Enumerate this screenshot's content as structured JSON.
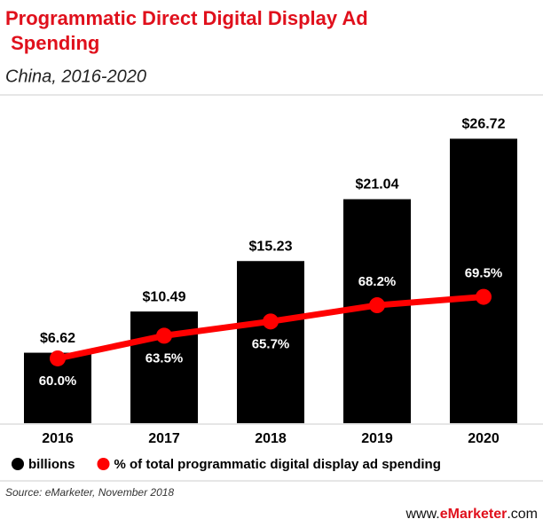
{
  "chart_data": {
    "type": "bar-line",
    "title": "Programmatic Direct Digital Display Ad Spending",
    "subtitle": "China, 2016-2020",
    "categories": [
      "2016",
      "2017",
      "2018",
      "2019",
      "2020"
    ],
    "series": [
      {
        "name": "billions",
        "type": "bar",
        "color": "#000000",
        "values": [
          6.62,
          10.49,
          15.23,
          21.04,
          26.72
        ],
        "value_labels": [
          "$6.62",
          "$10.49",
          "$15.23",
          "$21.04",
          "$26.72"
        ]
      },
      {
        "name": "% of total programmatic digital display ad spending",
        "type": "line",
        "axis": "y2",
        "color": "#ff0000",
        "values": [
          60.0,
          63.5,
          65.7,
          68.2,
          69.5
        ],
        "value_labels": [
          "60.0%",
          "63.5%",
          "65.7%",
          "68.2%",
          "69.5%"
        ]
      }
    ],
    "ylim": [
      0,
      28
    ],
    "y2lim": [
      50,
      96
    ],
    "legend": "bottom",
    "source": "Source: eMarketer, November 2018",
    "logo": {
      "prefix": "www.",
      "brand": "eMarketer",
      "suffix": ".com"
    }
  }
}
